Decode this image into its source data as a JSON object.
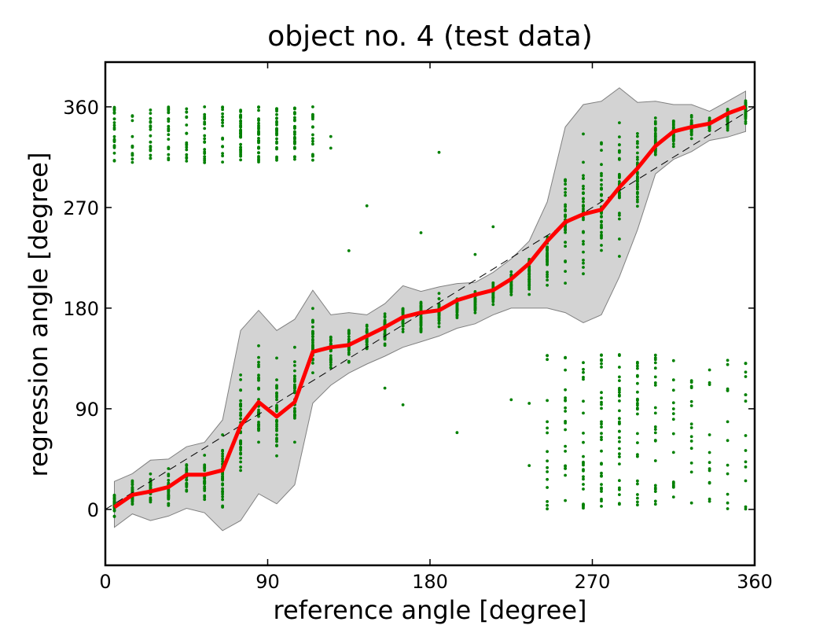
{
  "chart_data": {
    "type": "scatter",
    "title": "object no. 4 (test data)",
    "xlabel": "reference angle [degree]",
    "ylabel": "regression angle [degree]",
    "xlim": [
      0,
      360
    ],
    "ylim": [
      -50,
      400
    ],
    "xticks": [
      0,
      90,
      180,
      270,
      360
    ],
    "yticks": [
      0,
      90,
      180,
      270,
      360
    ],
    "grid": false,
    "colors": {
      "scatter": "#008000",
      "mean_line": "#ff0000",
      "band_fill": "#d3d3d3",
      "band_edge": "#808080",
      "diagonal": "#000000"
    },
    "bins_x": [
      5,
      15,
      25,
      35,
      45,
      55,
      65,
      75,
      85,
      95,
      105,
      115,
      125,
      135,
      145,
      155,
      165,
      175,
      185,
      195,
      205,
      215,
      225,
      235,
      245,
      255,
      265,
      275,
      285,
      295,
      305,
      315,
      325,
      335,
      345,
      355
    ],
    "mean_line": [
      2,
      13,
      16,
      20,
      31,
      31,
      35,
      75,
      96,
      83,
      96,
      141,
      145,
      147,
      155,
      163,
      172,
      176,
      178,
      187,
      192,
      196,
      206,
      220,
      240,
      257,
      264,
      268,
      288,
      305,
      325,
      338,
      342,
      345,
      354,
      360
    ],
    "band_upper": [
      25,
      32,
      44,
      45,
      56,
      60,
      80,
      160,
      178,
      160,
      170,
      196,
      174,
      176,
      174,
      184,
      200,
      195,
      199,
      202,
      203,
      212,
      224,
      240,
      275,
      342,
      362,
      365,
      377,
      364,
      365,
      362,
      362,
      356,
      365,
      374
    ],
    "band_lower": [
      -16,
      -4,
      -10,
      -6,
      1,
      -3,
      -19,
      -10,
      14,
      5,
      22,
      95,
      111,
      122,
      130,
      137,
      145,
      150,
      155,
      162,
      166,
      174,
      180,
      180,
      180,
      176,
      167,
      174,
      208,
      250,
      300,
      313,
      320,
      330,
      333,
      338
    ],
    "points_per_bin": 35,
    "outlier_counts": [
      [
        5,
        24
      ],
      [
        15,
        12
      ],
      [
        25,
        18
      ],
      [
        35,
        22
      ],
      [
        45,
        18
      ],
      [
        55,
        20
      ],
      [
        65,
        16
      ],
      [
        75,
        38
      ],
      [
        85,
        30
      ],
      [
        95,
        26
      ],
      [
        105,
        30
      ],
      [
        115,
        16
      ],
      [
        125,
        2
      ],
      [
        135,
        1
      ],
      [
        145,
        1
      ],
      [
        155,
        1
      ],
      [
        165,
        1
      ],
      [
        175,
        2
      ],
      [
        185,
        1
      ],
      [
        195,
        1
      ],
      [
        205,
        1
      ],
      [
        215,
        1
      ],
      [
        225,
        1
      ],
      [
        235,
        2
      ],
      [
        245,
        16
      ],
      [
        255,
        20
      ],
      [
        265,
        24
      ],
      [
        275,
        30
      ],
      [
        285,
        30
      ],
      [
        295,
        26
      ],
      [
        305,
        22
      ],
      [
        315,
        16
      ],
      [
        325,
        14
      ],
      [
        335,
        12
      ],
      [
        345,
        12
      ],
      [
        355,
        14
      ]
    ]
  }
}
